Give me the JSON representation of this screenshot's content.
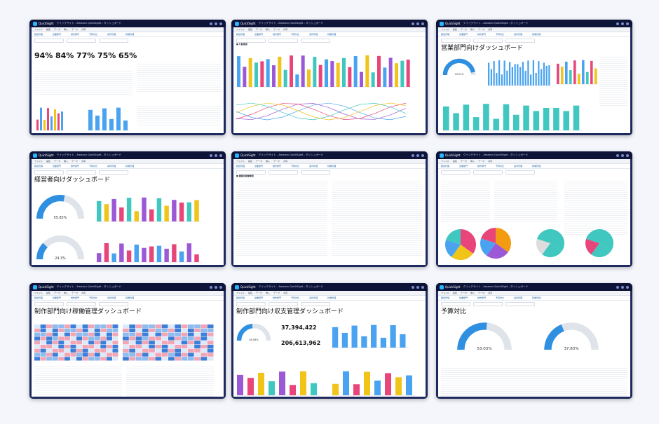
{
  "app": {
    "name": "QuickSight",
    "window_title": "クイックサイト - Amazon QuickSight - ダッシュボード"
  },
  "menu": [
    "ファイル",
    "編集",
    "データ",
    "挿入",
    "テーマ",
    "共有"
  ],
  "tiles": [
    {
      "title": "",
      "kpis": [
        "94%",
        "84%",
        "77%",
        "75%",
        "65%"
      ],
      "tabs": [
        "経営管理",
        "営業部門",
        "制作部門",
        "予算対比",
        "案件管理",
        "稼働管理"
      ]
    },
    {
      "title": "",
      "section": "■ 行動管理",
      "tabs": [
        "経営管理",
        "営業部門",
        "制作部門",
        "予算対比",
        "案件管理",
        "稼働管理"
      ]
    },
    {
      "title": "営業部門向けダッシュボード",
      "gauge": "93.91%",
      "tabs": [
        "経営管理",
        "営業部門",
        "制作部門",
        "予算対比",
        "案件管理",
        "稼働管理"
      ]
    },
    {
      "title": "経営者向けダッシュボード",
      "gauges": [
        "55.83%",
        "24.3%"
      ],
      "tabs": [
        "経営管理",
        "営業部門",
        "制作部門",
        "予算対比",
        "案件管理",
        "稼働管理"
      ]
    },
    {
      "title": "",
      "section": "■ 職種別稼働管理",
      "tabs": [
        "経営管理",
        "営業部門",
        "制作部門",
        "予算対比",
        "案件管理",
        "稼働管理"
      ]
    },
    {
      "title": "",
      "tabs": [
        "経営管理",
        "営業部門",
        "制作部門",
        "予算対比",
        "案件管理",
        "稼働管理"
      ]
    },
    {
      "title": "制作部門向け稼働管理ダッシュボード",
      "tabs": [
        "経営管理",
        "営業部門",
        "制作部門",
        "予算対比",
        "案件管理",
        "稼働管理"
      ]
    },
    {
      "title": "制作部門向け収支管理ダッシュボード",
      "gauge": "46.58%",
      "kpis": [
        "37,394,422",
        "206,613,962"
      ],
      "tabs": [
        "経営管理",
        "営業部門",
        "制作部門",
        "予算対比",
        "案件管理",
        "稼働管理"
      ]
    },
    {
      "title": "予算対比",
      "gauges": [
        "53.03%",
        "37.83%"
      ],
      "tabs": [
        "経営管理",
        "営業部門",
        "制作部門",
        "予算対比",
        "案件管理",
        "稼働管理"
      ]
    }
  ],
  "colors": {
    "frame": "#1e2a5e",
    "accent": "#2f8fe0",
    "bar1": "#4aa3f0",
    "bar2": "#9b59d6",
    "bar3": "#f0c419",
    "pink": "#e8457a",
    "teal": "#3fc7c0"
  }
}
